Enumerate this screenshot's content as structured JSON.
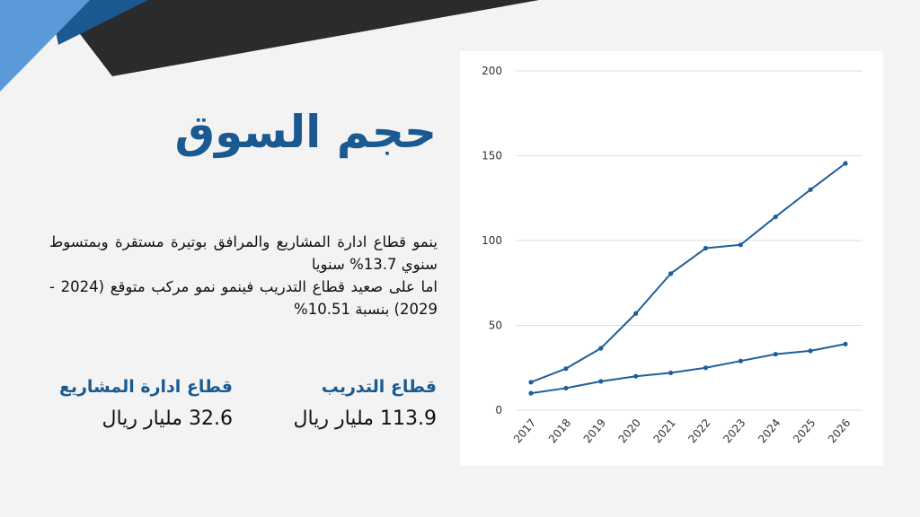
{
  "slide": {
    "title": "حجم السوق",
    "paragraph_lines": [
      "ينمو قطاع ادارة المشاريع والمرافق بوتيرة مستقرة وبمتسوط سنوي 13.7% سنويا",
      "اما على صعيد قطاع التدريب فينمو نمو مركب متوقع (2024 - 2029) بنسبة 10.51%"
    ],
    "stats": {
      "training": {
        "label": "قطاع التدريب",
        "value": "113.9 مليار ريال"
      },
      "project_management": {
        "label": "قطاع ادارة المشاريع",
        "value": "32.6 مليار ريال"
      }
    },
    "colors": {
      "accent": "#1a5a90",
      "corner_blue": "#5a9ad8",
      "corner_dark": "#2b2b2b",
      "line": "#1e5f99"
    }
  },
  "chart_data": {
    "type": "line",
    "categories": [
      "2017",
      "2018",
      "2019",
      "2020",
      "2021",
      "2022",
      "2023",
      "2024",
      "2025",
      "2026"
    ],
    "series": [
      {
        "values": [
          16.5,
          24.5,
          36.5,
          57,
          80.5,
          95.5,
          97.5,
          114,
          130,
          145.5
        ]
      },
      {
        "values": [
          10,
          13,
          17,
          20,
          22,
          25,
          29,
          33,
          35,
          39
        ]
      }
    ],
    "yticks": [
      0,
      50,
      100,
      150,
      200
    ],
    "ylim": [
      0,
      200
    ],
    "grid": true,
    "title": "",
    "xlabel": "",
    "ylabel": ""
  }
}
